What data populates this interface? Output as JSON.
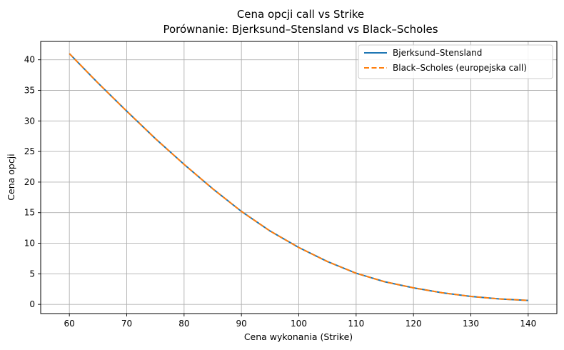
{
  "chart_data": {
    "type": "line",
    "title": "Cena opcji call vs Strike",
    "subtitle": "Porównanie: Bjerksund–Stensland vs Black–Scholes",
    "xlabel": "Cena wykonania (Strike)",
    "ylabel": "Cena opcji",
    "xlim": [
      55,
      145
    ],
    "ylim": [
      -1.5,
      43
    ],
    "xticks": [
      60,
      70,
      80,
      90,
      100,
      110,
      120,
      130,
      140
    ],
    "yticks": [
      0,
      5,
      10,
      15,
      20,
      25,
      30,
      35,
      40
    ],
    "grid": true,
    "legend_position": "top-right",
    "x": [
      60,
      65,
      70,
      75,
      80,
      85,
      90,
      95,
      100,
      105,
      110,
      115,
      120,
      125,
      130,
      135,
      140
    ],
    "series": [
      {
        "name": "Bjerksund–Stensland",
        "color": "#1f77b4",
        "style": "solid",
        "values": [
          41.0,
          36.2,
          31.6,
          27.1,
          22.9,
          18.9,
          15.2,
          12.0,
          9.3,
          7.0,
          5.1,
          3.7,
          2.7,
          1.9,
          1.3,
          0.9,
          0.65
        ]
      },
      {
        "name": "Black–Scholes (europejska call)",
        "color": "#ff7f0e",
        "style": "dashed",
        "values": [
          41.0,
          36.2,
          31.6,
          27.1,
          22.9,
          18.9,
          15.2,
          12.0,
          9.3,
          7.0,
          5.1,
          3.7,
          2.7,
          1.9,
          1.3,
          0.9,
          0.65
        ]
      }
    ]
  }
}
